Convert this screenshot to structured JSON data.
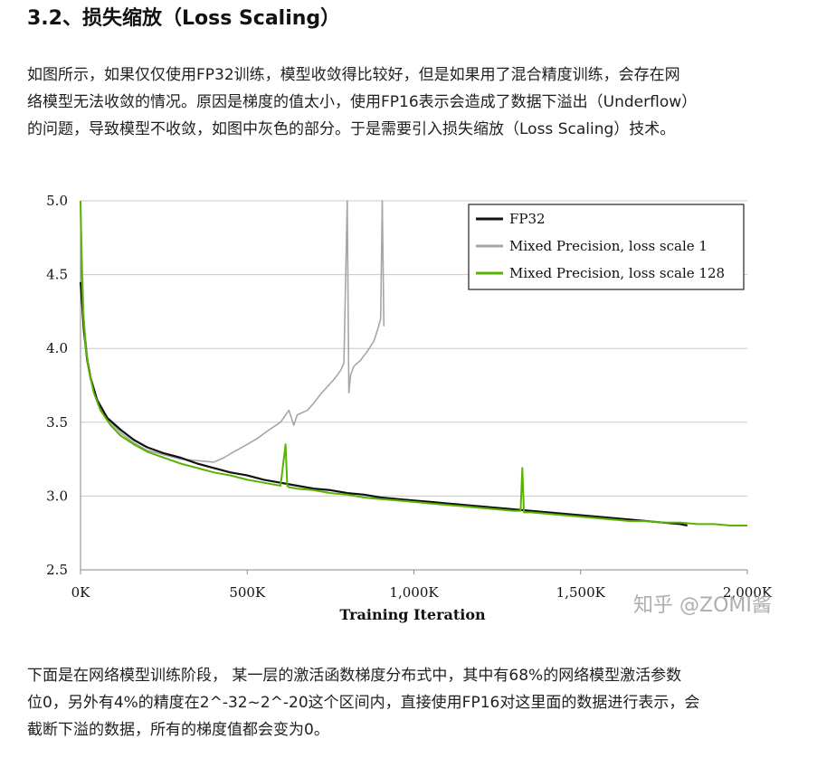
{
  "article": {
    "heading": "3.2、损失缩放（Loss Scaling）",
    "paragraph1_lines": [
      "如图所示，如果仅仅使用FP32训练，模型收敛得比较好，但是如果用了混合精度训练，会存在网",
      "络模型无法收敛的情况。原因是梯度的值太小，使用FP16表示会造成了数据下溢出（Underflow）",
      "的问题，导致模型不收敛，如图中灰色的部分。于是需要引入损失缩放（Loss Scaling）技术。"
    ],
    "paragraph2_lines": [
      "下面是在网络模型训练阶段， 某一层的激活函数梯度分布式中，其中有68%的网络模型激活参数",
      "位0，另外有4%的精度在2^-32~2^-20这个区间内，直接使用FP16对这里面的数据进行表示，会",
      "截断下溢的数据，所有的梯度值都会变为0。"
    ]
  },
  "watermark": "知乎 @ZOMI酱",
  "chart_data": {
    "type": "line",
    "title": "",
    "xlabel": "Training Iteration",
    "ylabel": "",
    "xlim": [
      0,
      2000
    ],
    "ylim": [
      2.5,
      5.0
    ],
    "x_unit": "K iterations",
    "xticks": [
      0,
      500,
      1000,
      1500,
      2000
    ],
    "xtick_labels": [
      "0K",
      "500K",
      "1,000K",
      "1,500K",
      "2,000K"
    ],
    "yticks": [
      2.5,
      3.0,
      3.5,
      4.0,
      4.5,
      5.0
    ],
    "ytick_labels": [
      "2.5",
      "3.0",
      "3.5",
      "4.0",
      "4.5",
      "5.0"
    ],
    "grid": "horizontal",
    "legend_position": "top-right",
    "series": [
      {
        "name": "FP32",
        "color": "#111111",
        "stroke_width": 2.2,
        "x": [
          0,
          5,
          10,
          20,
          30,
          50,
          80,
          120,
          160,
          200,
          250,
          300,
          350,
          400,
          450,
          500,
          550,
          600,
          650,
          700,
          750,
          800,
          850,
          900,
          950,
          1000,
          1050,
          1100,
          1150,
          1200,
          1250,
          1300,
          1350,
          1400,
          1450,
          1500,
          1550,
          1600,
          1650,
          1700,
          1750,
          1800,
          1820
        ],
        "y": [
          4.45,
          4.3,
          4.12,
          3.92,
          3.8,
          3.65,
          3.53,
          3.45,
          3.38,
          3.33,
          3.29,
          3.26,
          3.22,
          3.19,
          3.16,
          3.14,
          3.11,
          3.09,
          3.07,
          3.05,
          3.04,
          3.02,
          3.01,
          2.99,
          2.98,
          2.97,
          2.96,
          2.95,
          2.94,
          2.93,
          2.92,
          2.91,
          2.9,
          2.89,
          2.88,
          2.87,
          2.86,
          2.85,
          2.84,
          2.83,
          2.82,
          2.81,
          2.8
        ]
      },
      {
        "name": "Mixed Precision, loss scale 1",
        "color": "#a6a6a6",
        "stroke_width": 1.6,
        "x": [
          0,
          5,
          10,
          20,
          30,
          50,
          80,
          120,
          160,
          200,
          250,
          300,
          350,
          400,
          430,
          460,
          500,
          530,
          560,
          600,
          625,
          640,
          650,
          680,
          700,
          720,
          740,
          760,
          780,
          790,
          800,
          805,
          810,
          820,
          840,
          860,
          880,
          890,
          900,
          905,
          910
        ],
        "y": [
          5.0,
          4.6,
          4.2,
          3.95,
          3.8,
          3.65,
          3.52,
          3.43,
          3.36,
          3.31,
          3.28,
          3.25,
          3.24,
          3.23,
          3.26,
          3.3,
          3.35,
          3.39,
          3.44,
          3.5,
          3.58,
          3.48,
          3.55,
          3.58,
          3.63,
          3.69,
          3.74,
          3.79,
          3.85,
          3.9,
          5.0,
          3.7,
          3.82,
          3.88,
          3.92,
          3.98,
          4.05,
          4.12,
          4.2,
          5.0,
          4.15
        ]
      },
      {
        "name": "Mixed Precision, loss scale 128",
        "color": "#59b300",
        "stroke_width": 2.0,
        "x": [
          0,
          3,
          8,
          15,
          25,
          40,
          60,
          90,
          120,
          160,
          200,
          250,
          300,
          350,
          400,
          450,
          500,
          550,
          600,
          615,
          620,
          625,
          650,
          700,
          750,
          800,
          850,
          900,
          950,
          1000,
          1050,
          1100,
          1150,
          1200,
          1250,
          1300,
          1320,
          1325,
          1330,
          1350,
          1400,
          1450,
          1500,
          1550,
          1600,
          1650,
          1700,
          1750,
          1800,
          1850,
          1900,
          1950,
          2000
        ],
        "y": [
          5.0,
          4.55,
          4.25,
          4.02,
          3.85,
          3.7,
          3.58,
          3.48,
          3.41,
          3.35,
          3.3,
          3.26,
          3.22,
          3.19,
          3.16,
          3.14,
          3.11,
          3.09,
          3.07,
          3.35,
          3.07,
          3.06,
          3.05,
          3.04,
          3.02,
          3.01,
          2.99,
          2.98,
          2.97,
          2.96,
          2.95,
          2.94,
          2.93,
          2.92,
          2.91,
          2.9,
          2.9,
          3.19,
          2.89,
          2.89,
          2.88,
          2.87,
          2.86,
          2.85,
          2.84,
          2.83,
          2.83,
          2.82,
          2.82,
          2.81,
          2.81,
          2.8,
          2.8
        ]
      }
    ]
  }
}
